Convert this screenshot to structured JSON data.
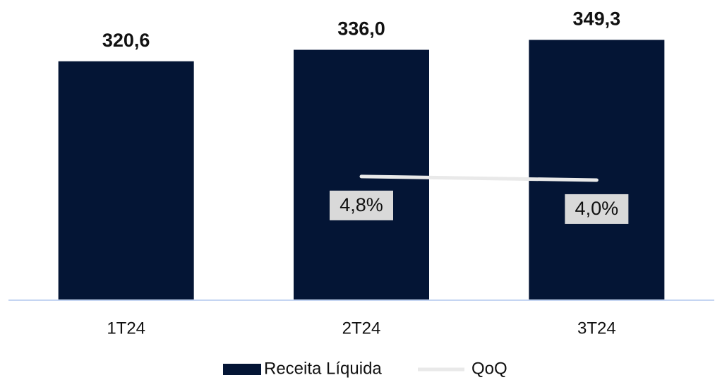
{
  "chart_data": {
    "type": "bar+line",
    "categories": [
      "1T24",
      "2T24",
      "3T24"
    ],
    "series": [
      {
        "name": "Receita Líquida",
        "type": "bar",
        "color": "#041535",
        "values": [
          320.6,
          336.0,
          349.3
        ],
        "value_labels": [
          "320,6",
          "336,0",
          "349,3"
        ]
      },
      {
        "name": "QoQ",
        "type": "line",
        "axis": "y2",
        "color": "#e9e9e9",
        "values": [
          null,
          4.8,
          4.0
        ],
        "value_labels": [
          null,
          "4,8%",
          "4,0%"
        ]
      }
    ],
    "ylim": [
      0,
      400
    ],
    "y2lim": [
      -23,
      44
    ],
    "legend": "bottom"
  }
}
